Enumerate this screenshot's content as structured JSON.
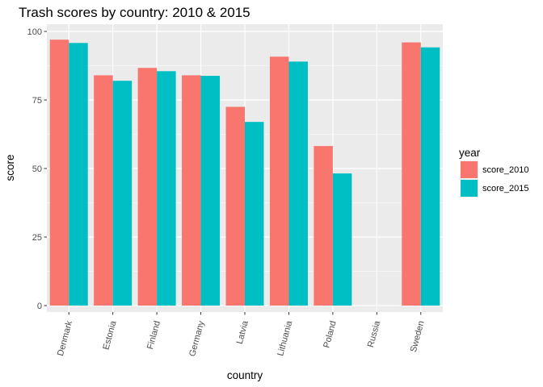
{
  "chart_data": {
    "type": "bar",
    "title": "Trash scores by country: 2010 & 2015",
    "xlabel": "country",
    "ylabel": "score",
    "ylim": [
      0,
      100
    ],
    "yticks": [
      0,
      25,
      50,
      75,
      100
    ],
    "categories": [
      "Denmark",
      "Estonia",
      "Finland",
      "Germany",
      "Latvia",
      "Lithuania",
      "Poland",
      "Russia",
      "Sweden"
    ],
    "series": [
      {
        "name": "score_2010",
        "color": "#F8766D",
        "values": [
          97,
          84,
          86.7,
          84,
          72.5,
          90.8,
          58.2,
          null,
          96
        ]
      },
      {
        "name": "score_2015",
        "color": "#00BFC4",
        "values": [
          95.8,
          82,
          85.5,
          83.8,
          67,
          89,
          48.2,
          null,
          94.2
        ]
      }
    ],
    "legend": {
      "title": "year",
      "position": "right"
    },
    "grid": true
  }
}
